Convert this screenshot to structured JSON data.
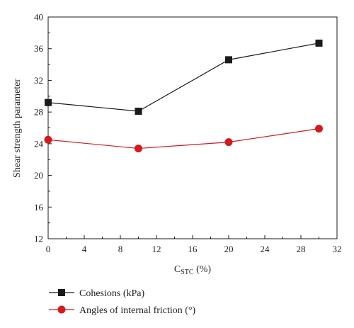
{
  "chart_data": {
    "type": "line",
    "xlabel": "C",
    "xlabel_sub": "STC",
    "xlabel_unit": " (%)",
    "ylabel": "Shear strength parameter",
    "xlim": [
      0,
      32
    ],
    "ylim": [
      12,
      40
    ],
    "xticks": [
      0,
      4,
      8,
      12,
      16,
      20,
      24,
      28,
      32
    ],
    "yticks": [
      12,
      16,
      20,
      24,
      28,
      32,
      36,
      40
    ],
    "x": [
      0,
      10,
      20,
      30
    ],
    "grid": false,
    "legend_placement": "bottom",
    "series": [
      {
        "name": "Cohesions (kPa)",
        "values": [
          29.2,
          28.1,
          34.6,
          36.7
        ],
        "color": "#1a1a1a",
        "marker": "square"
      },
      {
        "name": "Angles of internal friction (°)",
        "values": [
          24.5,
          23.4,
          24.2,
          25.9
        ],
        "color": "#d7191c",
        "marker": "circle"
      }
    ]
  }
}
